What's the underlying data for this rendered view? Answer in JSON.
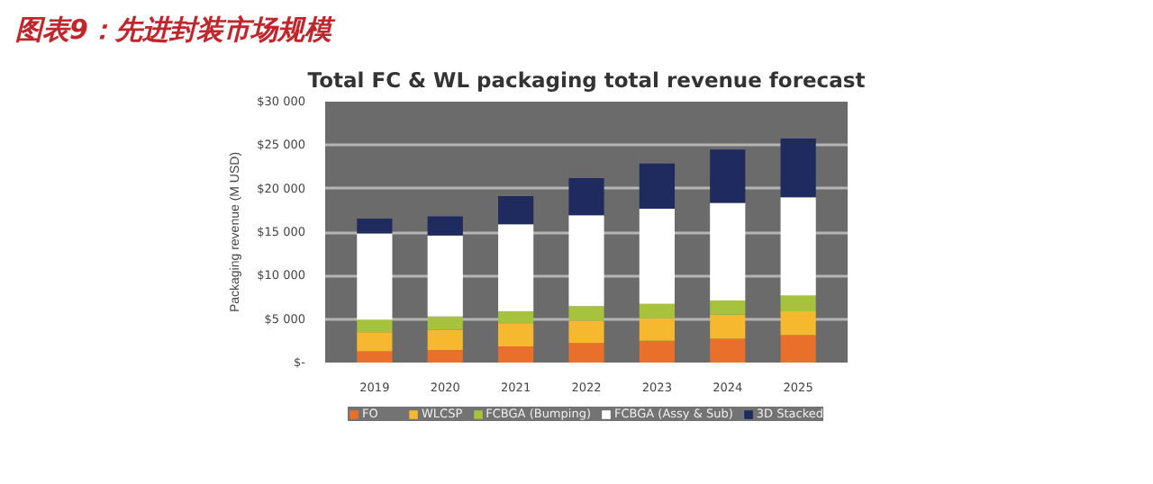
{
  "chart_data": {
    "type": "bar",
    "stacked": true,
    "title": "图表9：先进封装市场规模",
    "subtitle": "Total FC & WL packaging total revenue forecast",
    "ylabel": "Packaging revenue (M USD)",
    "categories": [
      "2019",
      "2020",
      "2021",
      "2022",
      "2023",
      "2024",
      "2025"
    ],
    "series": [
      {
        "name": "FO",
        "color": "#e8702a",
        "values": [
          1300,
          1450,
          1850,
          2250,
          2500,
          2750,
          3150
        ]
      },
      {
        "name": "WLCSP",
        "color": "#f5b82e",
        "values": [
          2200,
          2300,
          2600,
          2550,
          2600,
          2750,
          2750
        ]
      },
      {
        "name": "FCBGA (Bumping)",
        "color": "#a7c23d",
        "values": [
          1450,
          1550,
          1450,
          1700,
          1650,
          1650,
          1800
        ]
      },
      {
        "name": "FCBGA (Assy & Sub)",
        "color": "#ffffff",
        "values": [
          9900,
          9300,
          10000,
          10450,
          10950,
          11200,
          11300
        ]
      },
      {
        "name": "3D Stacked",
        "color": "#1f2a5e",
        "values": [
          1700,
          2200,
          3250,
          4250,
          5200,
          6150,
          6750
        ]
      }
    ],
    "ylim": [
      0,
      30000
    ],
    "yticks": [
      {
        "value": 0,
        "label": "$-"
      },
      {
        "value": 5000,
        "label": "$5 000"
      },
      {
        "value": 10000,
        "label": "$10 000"
      },
      {
        "value": 15000,
        "label": "$15 000"
      },
      {
        "value": 20000,
        "label": "$20 000"
      },
      {
        "value": 25000,
        "label": "$25 000"
      },
      {
        "value": 30000,
        "label": "$30 000"
      }
    ],
    "grid": "y",
    "legend": "bottom"
  }
}
